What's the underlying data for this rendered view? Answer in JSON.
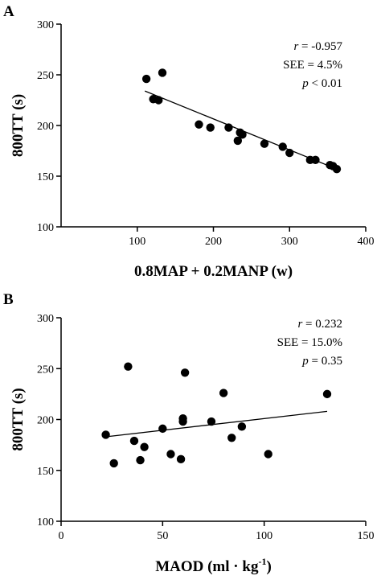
{
  "chart_data": [
    {
      "type": "scatter",
      "panel_label": "A",
      "xlabel": "0.8MAP + 0.2MANP (w)",
      "ylabel": "800TT (s)",
      "xlim": [
        0,
        400
      ],
      "ylim": [
        100,
        300
      ],
      "xticks": [
        100,
        200,
        300,
        400
      ],
      "yticks": [
        100,
        150,
        200,
        250,
        300
      ],
      "grid": false,
      "points": [
        {
          "x": 112,
          "y": 246
        },
        {
          "x": 121,
          "y": 226
        },
        {
          "x": 128,
          "y": 225
        },
        {
          "x": 133,
          "y": 252
        },
        {
          "x": 181,
          "y": 201
        },
        {
          "x": 196,
          "y": 198
        },
        {
          "x": 220,
          "y": 198
        },
        {
          "x": 232,
          "y": 185
        },
        {
          "x": 235,
          "y": 193
        },
        {
          "x": 238,
          "y": 191
        },
        {
          "x": 267,
          "y": 182
        },
        {
          "x": 291,
          "y": 179
        },
        {
          "x": 300,
          "y": 173
        },
        {
          "x": 327,
          "y": 166
        },
        {
          "x": 334,
          "y": 166
        },
        {
          "x": 353,
          "y": 161
        },
        {
          "x": 357,
          "y": 160
        },
        {
          "x": 362,
          "y": 157
        }
      ],
      "fit_line": {
        "x1": 110,
        "y1": 234,
        "x2": 362,
        "y2": 157
      },
      "stats": [
        {
          "symbol": "r",
          "text": " = -0.957"
        },
        {
          "symbol": "",
          "text": "SEE = 4.5%"
        },
        {
          "symbol": "p",
          "text": " < 0.01"
        }
      ]
    },
    {
      "type": "scatter",
      "panel_label": "B",
      "xlabel": "MAOD (ml · kg",
      "xlabel_superscript": "-1",
      "xlabel_suffix": ")",
      "ylabel": "800TT (s)",
      "xlim": [
        0,
        150
      ],
      "ylim": [
        100,
        300
      ],
      "xticks": [
        0,
        50,
        100,
        150
      ],
      "yticks": [
        100,
        150,
        200,
        250,
        300
      ],
      "grid": false,
      "points": [
        {
          "x": 22,
          "y": 185
        },
        {
          "x": 26,
          "y": 157
        },
        {
          "x": 33,
          "y": 252
        },
        {
          "x": 36,
          "y": 179
        },
        {
          "x": 39,
          "y": 160
        },
        {
          "x": 41,
          "y": 173
        },
        {
          "x": 50,
          "y": 191
        },
        {
          "x": 54,
          "y": 166
        },
        {
          "x": 59,
          "y": 161
        },
        {
          "x": 60,
          "y": 201
        },
        {
          "x": 60,
          "y": 198
        },
        {
          "x": 61,
          "y": 246
        },
        {
          "x": 74,
          "y": 198
        },
        {
          "x": 80,
          "y": 226
        },
        {
          "x": 84,
          "y": 182
        },
        {
          "x": 89,
          "y": 193
        },
        {
          "x": 102,
          "y": 166
        },
        {
          "x": 131,
          "y": 225
        }
      ],
      "fit_line": {
        "x1": 22,
        "y1": 183,
        "x2": 131,
        "y2": 208
      },
      "stats": [
        {
          "symbol": "r",
          "text": " = 0.232"
        },
        {
          "symbol": "",
          "text": "SEE = 15.0%"
        },
        {
          "symbol": "p",
          "text": " = 0.35"
        }
      ]
    }
  ]
}
